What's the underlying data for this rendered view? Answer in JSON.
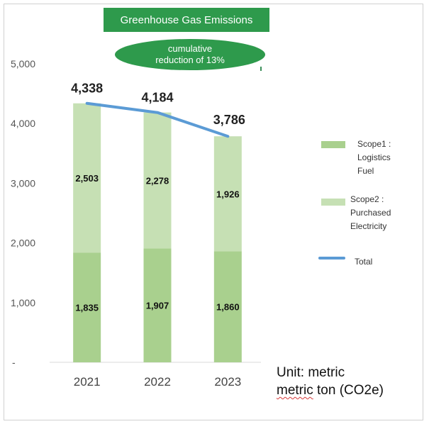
{
  "title": "Greenhouse Gas Emissions",
  "annotation": {
    "line1": "cumulative",
    "line2": "reduction of 13%"
  },
  "unit": {
    "line1": "Unit: metric",
    "line2_part1": "metric",
    "line2_part2": " ton (CO2e)"
  },
  "colors": {
    "scope1": "#a9d08e",
    "scope2": "#c6e0b4",
    "total": "#5b9bd5",
    "title_bg": "#2e9a4c"
  },
  "chart_data": {
    "type": "bar",
    "stacked": true,
    "categories": [
      "2021",
      "2022",
      "2023"
    ],
    "series": [
      {
        "name": "Scope1 : Logistics Fuel",
        "values": [
          1835,
          1907,
          1860
        ],
        "labels": [
          "1,835",
          "1,907",
          "1,860"
        ],
        "color": "#a9d08e"
      },
      {
        "name": "Scope2 : Purchased Electricity",
        "values": [
          2503,
          2278,
          1926
        ],
        "labels": [
          "2,503",
          "2,278",
          "1,926"
        ],
        "color": "#c6e0b4"
      },
      {
        "name": "Total",
        "type": "line",
        "values": [
          4338,
          4184,
          3786
        ],
        "labels": [
          "4,338",
          "4,184",
          "3,786"
        ],
        "color": "#5b9bd5"
      }
    ],
    "yticks": [
      0,
      1000,
      2000,
      3000,
      4000,
      5000
    ],
    "ytick_labels": [
      "-",
      "1,000",
      "2,000",
      "3,000",
      "4,000",
      "5,000"
    ],
    "ylim": [
      0,
      5000
    ],
    "legend": [
      {
        "label": "Scope1 :\nLogistics\nFuel",
        "kind": "box",
        "color": "#a9d08e"
      },
      {
        "label": "Scope2 :\nPurchased\nElectricity",
        "kind": "box",
        "color": "#c6e0b4"
      },
      {
        "label": "Total",
        "kind": "line",
        "color": "#5b9bd5"
      }
    ],
    "legend_position": "right"
  }
}
